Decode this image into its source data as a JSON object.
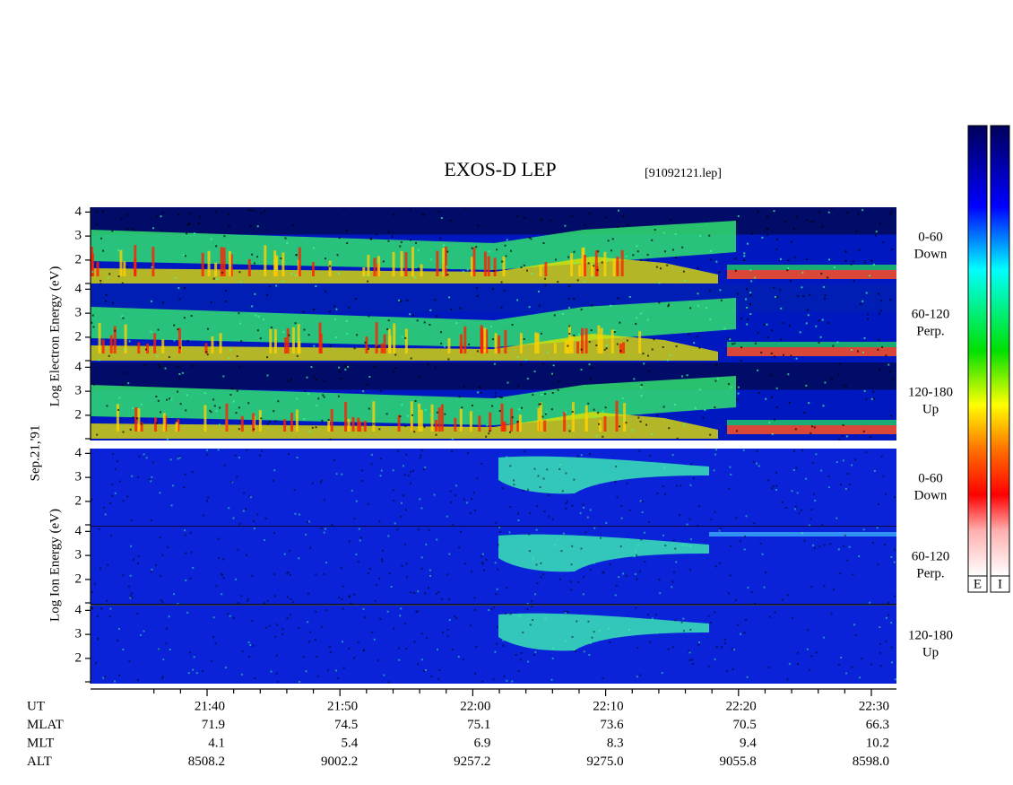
{
  "title": "EXOS-D LEP",
  "file": "[91092121.lep]",
  "date": "Sep.21,'91",
  "electron_label": "Log Electron Energy (eV)",
  "ion_label": "Log Ion Energy (eV)",
  "ylim": [
    0.95,
    4.2
  ],
  "yticks": [
    2,
    3,
    4
  ],
  "panels": [
    {
      "line1": "0-60",
      "line2": "Down"
    },
    {
      "line1": "60-120",
      "line2": "Perp."
    },
    {
      "line1": "120-180",
      "line2": "Up"
    },
    {
      "line1": "0-60",
      "line2": "Down"
    },
    {
      "line1": "60-120",
      "line2": "Perp."
    },
    {
      "line1": "120-180",
      "line2": "Up"
    }
  ],
  "ephemeris": [
    {
      "name": "UT",
      "values": [
        "21:40",
        "21:50",
        "22:00",
        "22:10",
        "22:20",
        "22:30"
      ]
    },
    {
      "name": "MLAT",
      "values": [
        "71.9",
        "74.5",
        "75.1",
        "73.6",
        "70.5",
        "66.3"
      ]
    },
    {
      "name": "MLT",
      "values": [
        "4.1",
        "5.4",
        "6.9",
        "8.3",
        "9.4",
        "10.2"
      ]
    },
    {
      "name": "ALT",
      "values": [
        "8508.2",
        "9002.2",
        "9257.2",
        "9275.0",
        "9055.8",
        "8598.0"
      ]
    }
  ],
  "colorbars": [
    "E",
    "I"
  ]
}
